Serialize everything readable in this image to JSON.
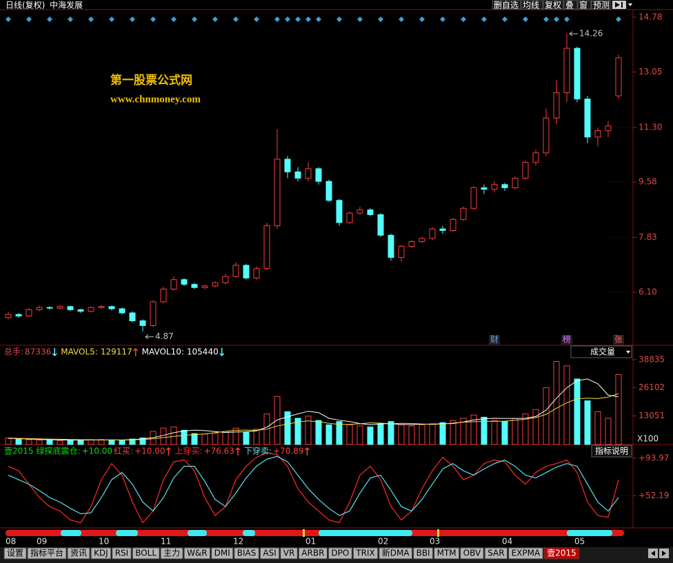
{
  "chart_data": [
    {
      "type": "candlestick",
      "title": "日线(复权)",
      "subtitle": "中海发展",
      "categories": [
        "08",
        null,
        null,
        "09",
        null,
        null,
        null,
        null,
        null,
        "10",
        null,
        null,
        null,
        null,
        null,
        "11",
        null,
        null,
        null,
        null,
        null,
        null,
        "12",
        null,
        null,
        null,
        null,
        null,
        null,
        "01",
        null,
        null,
        null,
        null,
        null,
        null,
        "02",
        null,
        null,
        null,
        null,
        "03",
        null,
        null,
        null,
        null,
        null,
        null,
        "04",
        null,
        null,
        null,
        null,
        null,
        null,
        "05",
        null,
        null,
        null,
        null
      ],
      "open": [
        5.3,
        5.4,
        5.35,
        5.55,
        5.62,
        5.6,
        5.65,
        5.55,
        5.5,
        5.62,
        5.65,
        5.58,
        5.45,
        5.2,
        5.05,
        5.8,
        6.2,
        6.5,
        6.35,
        6.25,
        6.3,
        6.4,
        6.6,
        6.95,
        6.55,
        6.85,
        8.2,
        10.3,
        9.9,
        9.7,
        10.0,
        9.6,
        9.0,
        8.3,
        8.6,
        8.7,
        8.55,
        7.9,
        7.2,
        7.55,
        7.7,
        7.8,
        8.1,
        8.05,
        8.4,
        8.75,
        9.4,
        9.35,
        9.5,
        9.4,
        9.7,
        10.2,
        10.5,
        11.6,
        12.4,
        13.8,
        12.2,
        11.0,
        11.2,
        12.3
      ],
      "high": [
        5.48,
        5.45,
        5.6,
        5.68,
        5.66,
        5.7,
        5.68,
        5.58,
        5.66,
        5.7,
        5.68,
        5.62,
        5.5,
        5.25,
        5.85,
        6.28,
        6.6,
        6.55,
        6.4,
        6.35,
        6.45,
        6.68,
        7.05,
        7.0,
        6.92,
        8.3,
        11.25,
        10.4,
        10.05,
        10.2,
        10.05,
        9.65,
        9.05,
        8.65,
        8.8,
        8.75,
        8.6,
        7.95,
        7.6,
        7.75,
        7.85,
        8.15,
        8.2,
        8.45,
        8.8,
        9.45,
        9.5,
        9.6,
        9.55,
        9.75,
        10.25,
        10.6,
        11.9,
        12.8,
        14.26,
        13.85,
        12.3,
        11.3,
        11.5,
        13.6
      ],
      "low": [
        5.25,
        5.3,
        5.32,
        5.5,
        5.55,
        5.56,
        5.5,
        5.45,
        5.46,
        5.58,
        5.52,
        5.4,
        5.15,
        4.87,
        5.0,
        5.75,
        6.15,
        6.3,
        6.2,
        6.2,
        6.25,
        6.35,
        6.55,
        6.5,
        6.5,
        6.8,
        8.1,
        9.7,
        9.6,
        9.6,
        9.5,
        8.95,
        8.2,
        8.25,
        8.55,
        8.5,
        7.85,
        7.1,
        7.05,
        7.5,
        7.65,
        7.75,
        7.95,
        8.0,
        8.35,
        8.7,
        9.2,
        9.25,
        9.3,
        9.35,
        9.65,
        10.1,
        10.4,
        11.4,
        12.1,
        12.1,
        10.8,
        10.7,
        11.0,
        12.2
      ],
      "close": [
        5.4,
        5.35,
        5.55,
        5.62,
        5.6,
        5.65,
        5.55,
        5.5,
        5.62,
        5.65,
        5.58,
        5.45,
        5.2,
        5.05,
        5.8,
        6.2,
        6.5,
        6.35,
        6.25,
        6.3,
        6.4,
        6.6,
        6.95,
        6.55,
        6.85,
        8.2,
        10.3,
        9.9,
        9.7,
        10.0,
        9.6,
        9.0,
        8.3,
        8.6,
        8.7,
        8.55,
        7.9,
        7.2,
        7.55,
        7.7,
        7.8,
        8.1,
        8.05,
        8.4,
        8.75,
        9.4,
        9.35,
        9.5,
        9.4,
        9.7,
        10.2,
        10.5,
        11.6,
        12.4,
        13.8,
        12.2,
        11.0,
        11.2,
        11.35,
        13.5
      ],
      "up_color": "#ff3c3c",
      "down_color": "#54fcfc",
      "axis_color": "#e04848",
      "grid": false,
      "ylim": [
        4.45,
        15.02
      ],
      "yticks": [
        {
          "value": 6.1,
          "label": "6.10"
        },
        7.83,
        9.58,
        {
          "value": 11.3,
          "label": "11.30"
        },
        13.05,
        14.78
      ],
      "signals": [
        0,
        2,
        4,
        6,
        8,
        10,
        12,
        14,
        16,
        18,
        20,
        22,
        24,
        26,
        27,
        28,
        29,
        30,
        32,
        34,
        36,
        38,
        40,
        42,
        44,
        46,
        48,
        50,
        52,
        53,
        54,
        59
      ],
      "signal_color": "#3aa0d8",
      "markers": [
        {
          "text": "财",
          "index": 47
        },
        {
          "text": "榜",
          "index": 54
        },
        {
          "text": "张",
          "index": 59
        }
      ],
      "watermark": [
        "第一股票公式网",
        "www.chnmoney.com"
      ]
    },
    {
      "type": "bar",
      "title": "成交量",
      "values": [
        3000,
        2500,
        2200,
        2000,
        2100,
        1800,
        2000,
        1900,
        2200,
        2300,
        2100,
        2000,
        2500,
        3000,
        6000,
        7500,
        8000,
        6500,
        5000,
        4800,
        5200,
        6000,
        7500,
        5500,
        7000,
        14000,
        22000,
        15000,
        12000,
        13000,
        11000,
        9000,
        10500,
        9000,
        8500,
        8000,
        9500,
        10500,
        9000,
        8500,
        9000,
        9500,
        10000,
        11000,
        12000,
        13500,
        12500,
        11000,
        10500,
        12000,
        14000,
        16000,
        26000,
        38000,
        36000,
        30000,
        20000,
        15000,
        12000,
        32000
      ],
      "total": {
        "name": "总手:",
        "value": 87336,
        "direction": "down"
      },
      "series": [
        {
          "name": "MAVOL5:",
          "color": "#ffffff",
          "current": 129117,
          "direction": "up",
          "values": [
            2800,
            2700,
            2500,
            2300,
            2150,
            2100,
            2000,
            2000,
            2050,
            2060,
            2100,
            2100,
            2220,
            2580,
            3120,
            4200,
            5400,
            6200,
            6560,
            6360,
            5900,
            5500,
            5700,
            5800,
            6240,
            7900,
            11200,
            12700,
            14000,
            15200,
            14600,
            12000,
            11100,
            10500,
            9600,
            9000,
            9500,
            9500,
            9100,
            9100,
            9300,
            9300,
            9500,
            9600,
            10300,
            11200,
            11800,
            12000,
            11900,
            11900,
            12000,
            12800,
            15700,
            21200,
            26000,
            29200,
            30000,
            27800,
            22600,
            21800
          ]
        },
        {
          "name": "MAVOL10:",
          "color": "#f0e040",
          "current": 105440,
          "direction": "down",
          "values": [
            2900,
            2800,
            2700,
            2550,
            2450,
            2400,
            2300,
            2200,
            2150,
            2100,
            2080,
            2060,
            2100,
            2300,
            2600,
            3150,
            3700,
            4200,
            4550,
            4800,
            5400,
            6000,
            6500,
            6600,
            6500,
            7000,
            8500,
            9300,
            10300,
            10800,
            10400,
            9700,
            9200,
            9200,
            9500,
            9900,
            9800,
            9500,
            9700,
            9600,
            9400,
            9200,
            9400,
            9800,
            10200,
            10400,
            10600,
            10600,
            10700,
            11100,
            11600,
            12300,
            13800,
            16600,
            19100,
            20900,
            21200,
            21000,
            21700,
            23300
          ]
        }
      ],
      "ylim": [
        0,
        44800
      ],
      "yticks": [
        13051,
        26102,
        38835
      ],
      "unit": "X100",
      "axis_color": "#e04848"
    },
    {
      "type": "line",
      "title": "壹2015",
      "signals": [
        {
          "name": "绿探底震仓:",
          "value": 10,
          "value_label": "+10.00",
          "color": "#00e000"
        },
        {
          "name": "红买:",
          "value": 10,
          "value_label": "+10.00",
          "color": "#ff4040",
          "direction": "up"
        }
      ],
      "series": [
        {
          "name": "上穿买:",
          "color": "#ff2a2a",
          "current": 76.63,
          "current_label": "+76.63",
          "direction": "up",
          "values": [
            85,
            80,
            65,
            50,
            40,
            35,
            25,
            22,
            40,
            70,
            88,
            75,
            45,
            22,
            35,
            70,
            90,
            92,
            80,
            50,
            30,
            40,
            70,
            85,
            95,
            100,
            98,
            85,
            60,
            45,
            35,
            25,
            22,
            45,
            75,
            85,
            70,
            40,
            25,
            35,
            60,
            80,
            95,
            85,
            70,
            75,
            88,
            92,
            90,
            75,
            65,
            78,
            85,
            88,
            92,
            78,
            45,
            30,
            28,
            70
          ]
        },
        {
          "name": "下穿卖:",
          "color": "#5ee0f0",
          "current": 70.89,
          "current_label": "+70.89",
          "direction": "up",
          "values": [
            75,
            70,
            65,
            58,
            50,
            45,
            38,
            32,
            33,
            50,
            70,
            78,
            65,
            45,
            35,
            50,
            72,
            85,
            85,
            68,
            48,
            40,
            55,
            72,
            85,
            93,
            96,
            90,
            75,
            60,
            48,
            38,
            30,
            35,
            55,
            72,
            75,
            58,
            40,
            35,
            48,
            65,
            82,
            88,
            80,
            75,
            82,
            88,
            92,
            85,
            75,
            72,
            78,
            84,
            88,
            85,
            65,
            45,
            35,
            50
          ]
        }
      ],
      "ylim": [
        17,
        107
      ],
      "yticks": [
        {
          "value": 52.19,
          "label": "+52.19"
        },
        {
          "value": 93.97,
          "label": "+93.97"
        }
      ],
      "axis_color": "#e04848"
    }
  ],
  "ui": {
    "toolbar": [
      "删自选",
      "均线",
      "复权",
      "叠",
      "窗",
      "预测"
    ],
    "explain": "指标说明",
    "tabs": [
      "设置",
      "指标平台",
      "资讯",
      "KDJ",
      "RSI",
      "BOLL",
      "主力",
      "W&R",
      "DMI",
      "BIAS",
      "ASI",
      "VR",
      "ARBR",
      "DPO",
      "TRIX",
      "新DMA",
      "BBI",
      "MTM",
      "OBV",
      "SAR",
      "EXPMA",
      "壹2015"
    ],
    "active_tab": 21
  }
}
